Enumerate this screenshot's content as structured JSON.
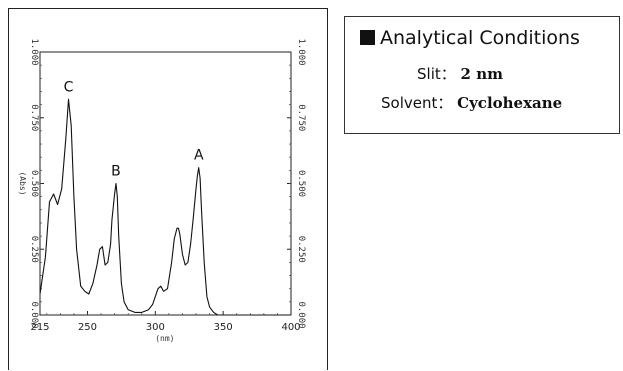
{
  "conditions": {
    "title": "Analytical Conditions",
    "slit_label": "Slit",
    "slit_value": "2 nm",
    "solvent_label": "Solvent",
    "solvent_value": "Cyclohexane"
  },
  "chart_data": {
    "type": "line",
    "title": "",
    "xlabel": "(nm)",
    "ylabel": "(Abs)",
    "xlim": [
      215,
      400
    ],
    "ylim": [
      0,
      1.0
    ],
    "x_ticks": [
      215,
      250,
      300,
      350,
      400
    ],
    "y_ticks": [
      "0.000",
      "0.250",
      "0.500",
      "0.750",
      "1.000"
    ],
    "grid": false,
    "series": [
      {
        "x": [
          215,
          219,
          222,
          225,
          228,
          231,
          234,
          236,
          238,
          240,
          242,
          245,
          248,
          251,
          254,
          257,
          259,
          261,
          263,
          265,
          267,
          268,
          270,
          271,
          272,
          273,
          275,
          277,
          280,
          285,
          290,
          295,
          298,
          300,
          302,
          304,
          306,
          309,
          312,
          314,
          316,
          317,
          318,
          320,
          322,
          324,
          326,
          328,
          330,
          331,
          332,
          333,
          334,
          336,
          338,
          340,
          343,
          346,
          350,
          360,
          370,
          380,
          390,
          400
        ],
        "y": [
          0.08,
          0.22,
          0.43,
          0.46,
          0.42,
          0.48,
          0.67,
          0.82,
          0.72,
          0.45,
          0.25,
          0.11,
          0.09,
          0.08,
          0.12,
          0.19,
          0.25,
          0.26,
          0.19,
          0.2,
          0.27,
          0.36,
          0.46,
          0.5,
          0.45,
          0.3,
          0.12,
          0.05,
          0.02,
          0.01,
          0.01,
          0.02,
          0.04,
          0.07,
          0.1,
          0.11,
          0.09,
          0.1,
          0.2,
          0.29,
          0.33,
          0.33,
          0.31,
          0.23,
          0.19,
          0.2,
          0.27,
          0.37,
          0.48,
          0.53,
          0.56,
          0.52,
          0.4,
          0.2,
          0.07,
          0.03,
          0.01,
          0.0,
          0.0,
          0.0,
          0.0,
          0.0,
          0.0,
          0.0
        ]
      }
    ],
    "annotations": [
      {
        "text": "C",
        "x": 236,
        "y": 0.82
      },
      {
        "text": "B",
        "x": 271,
        "y": 0.5
      },
      {
        "text": "A",
        "x": 332,
        "y": 0.56
      }
    ]
  }
}
